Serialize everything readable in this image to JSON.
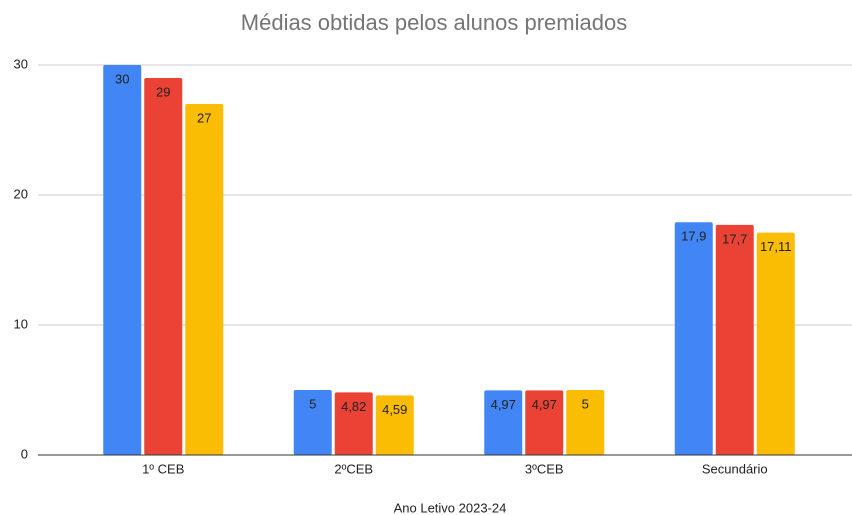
{
  "chart_data": {
    "type": "bar",
    "title": "Médias obtidas pelos alunos premiados",
    "x_label": "Ano Letivo 2023-24",
    "categories": [
      "1º CEB",
      "2ºCEB",
      "3ºCEB",
      "Secundário"
    ],
    "series": [
      {
        "color": "#4285f4",
        "values": [
          30,
          5,
          4.97,
          17.9
        ],
        "value_labels": [
          "30",
          "5",
          "4,97",
          "17,9"
        ]
      },
      {
        "color": "#ea4335",
        "values": [
          29,
          4.82,
          4.97,
          17.7
        ],
        "value_labels": [
          "29",
          "4,82",
          "4,97",
          "17,7"
        ]
      },
      {
        "color": "#fbbc04",
        "values": [
          27,
          4.59,
          5,
          17.11
        ],
        "value_labels": [
          "27",
          "4,59",
          "5",
          "17,11"
        ]
      }
    ],
    "ylim": [
      0,
      30
    ],
    "yticks": [
      0,
      10,
      20,
      30
    ],
    "grid": true
  }
}
